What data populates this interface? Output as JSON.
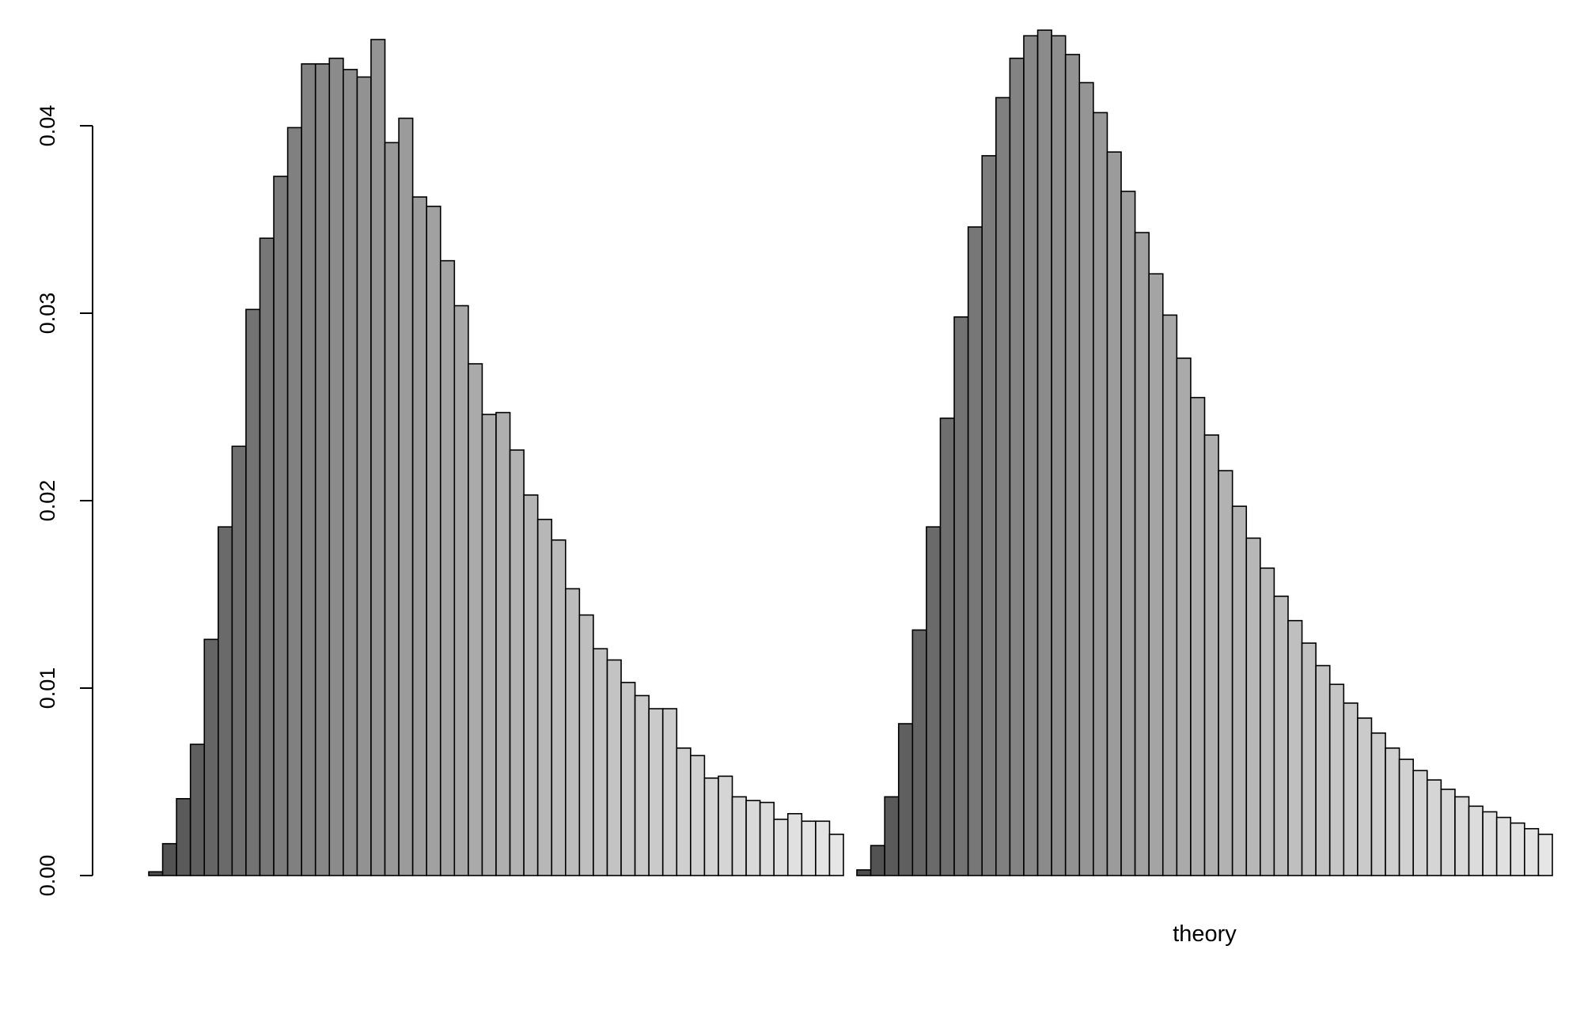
{
  "chart_data": {
    "type": "bar",
    "title": "",
    "ylabel": "",
    "ylim": [
      0,
      0.045
    ],
    "yticks": [
      "0.00",
      "0.01",
      "0.02",
      "0.03",
      "0.04"
    ],
    "grid": false,
    "legend": "none",
    "panels": [
      {
        "name": "",
        "xlabel": "",
        "values": [
          0.0002,
          0.0017,
          0.0041,
          0.007,
          0.0126,
          0.0186,
          0.0229,
          0.0302,
          0.034,
          0.0373,
          0.0399,
          0.0433,
          0.0433,
          0.0436,
          0.043,
          0.0426,
          0.0446,
          0.0391,
          0.0404,
          0.0362,
          0.0357,
          0.0328,
          0.0304,
          0.0273,
          0.0246,
          0.0247,
          0.0227,
          0.0203,
          0.019,
          0.0179,
          0.0153,
          0.0139,
          0.0121,
          0.0115,
          0.0103,
          0.0096,
          0.0089,
          0.0089,
          0.0068,
          0.0064,
          0.0052,
          0.0053,
          0.0042,
          0.004,
          0.0039,
          0.003,
          0.0033,
          0.0029,
          0.0029,
          0.0022
        ]
      },
      {
        "name": "",
        "xlabel": "theory",
        "values": [
          0.0003,
          0.0016,
          0.0042,
          0.0081,
          0.0131,
          0.0186,
          0.0244,
          0.0298,
          0.0346,
          0.0384,
          0.0415,
          0.0436,
          0.0448,
          0.0451,
          0.0448,
          0.0438,
          0.0423,
          0.0407,
          0.0386,
          0.0365,
          0.0343,
          0.0321,
          0.0299,
          0.0276,
          0.0255,
          0.0235,
          0.0216,
          0.0197,
          0.018,
          0.0164,
          0.0149,
          0.0136,
          0.0124,
          0.0112,
          0.0102,
          0.0092,
          0.0084,
          0.0076,
          0.0068,
          0.0062,
          0.0056,
          0.0051,
          0.0046,
          0.0042,
          0.0037,
          0.0034,
          0.0031,
          0.0028,
          0.0025,
          0.0022
        ]
      }
    ]
  }
}
